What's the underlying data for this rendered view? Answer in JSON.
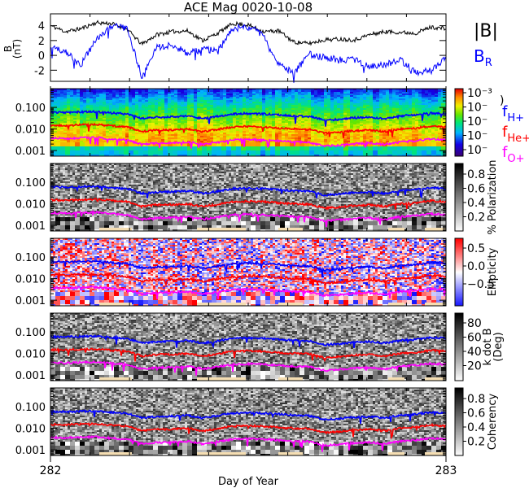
{
  "chart_data": {
    "type": "line",
    "title": "ACE Mag 0020-10-08",
    "xlabel": "Day of Year",
    "x_tick_labels": [
      "282",
      "283"
    ],
    "xlim": [
      282,
      283
    ],
    "x": [
      282.0,
      282.04,
      282.08,
      282.12,
      282.16,
      282.2,
      282.23,
      282.27,
      282.31,
      282.35,
      282.38,
      282.42,
      282.46,
      282.5,
      282.54,
      282.58,
      282.62,
      282.65,
      282.69,
      282.73,
      282.77,
      282.81,
      282.85,
      282.88,
      282.92,
      282.96,
      283.0
    ],
    "panels": [
      {
        "name": "field",
        "ylabel": "B",
        "ylabel_units": "(nT)",
        "ylim": [
          -3.5,
          5.6
        ],
        "y_tick_labels": [
          "4",
          "2",
          "0",
          "-2"
        ],
        "y_ticks": [
          4,
          2,
          0,
          -2
        ],
        "series": [
          {
            "name": "|B|",
            "color": "#000000",
            "values": [
              4.0,
              3.2,
              3.6,
              4.4,
              4.3,
              3.6,
              1.5,
              2.8,
              3.2,
              3.3,
              2.0,
              3.0,
              4.3,
              4.1,
              3.2,
              3.3,
              1.8,
              1.6,
              2.1,
              2.2,
              2.1,
              2.8,
              3.2,
              3.1,
              3.0,
              3.8,
              3.6
            ]
          },
          {
            "name": "B_R",
            "color": "#0000ff",
            "values": [
              1.0,
              0.6,
              -1.3,
              2.2,
              4.0,
              3.8,
              -2.8,
              1.0,
              1.5,
              0.3,
              0.8,
              0.6,
              3.6,
              3.8,
              2.8,
              -1.2,
              -2.4,
              0.2,
              -0.3,
              -0.6,
              -0.6,
              -1.6,
              -1.2,
              -0.6,
              -2.3,
              -2.1,
              -0.4
            ]
          }
        ]
      },
      {
        "name": "power-spectrogram",
        "colorbar_labels": [
          "10⁻³",
          "10⁻",
          "10⁻",
          "10⁻",
          "10⁻"
        ],
        "colorbar_label_fragment": ")",
        "colormap": "rainbow"
      },
      {
        "name": "polarization-spectrogram",
        "colorbar_title": "% Polarization",
        "colorbar_labels": [
          "0.8",
          "0.6",
          "0.4",
          "0.2"
        ],
        "colormap": "gray"
      },
      {
        "name": "ellipticity-spectrogram",
        "colorbar_title": "Ellipticity",
        "colorbar_labels": [
          "0.5",
          "0.0",
          "−0.5"
        ],
        "colormap": "blue-white-red"
      },
      {
        "name": "kdotb-spectrogram",
        "colorbar_title": "k dot B",
        "colorbar_subtitle": "(Deg)",
        "colorbar_labels": [
          "80",
          "60",
          "40",
          "20"
        ],
        "colormap": "gray"
      },
      {
        "name": "coherency-spectrogram",
        "colorbar_title": "Coherency",
        "colorbar_labels": [
          "0.8",
          "0.6",
          "0.4",
          "0.2"
        ],
        "colormap": "gray"
      }
    ],
    "spectrogram_y_tick_labels": [
      "0.100",
      "0.010",
      "0.001"
    ],
    "spectrogram_y_ticks": [
      0.1,
      0.01,
      0.001
    ],
    "spectrogram_ylim": [
      0.00055,
      0.74
    ],
    "spectrogram_yscale": "log",
    "gyro_series": [
      {
        "name": "f_H+",
        "label_main": "f",
        "label_sub": "H+",
        "color": "#0000ff",
        "values": [
          0.06,
          0.058,
          0.062,
          0.063,
          0.055,
          0.05,
          0.03,
          0.035,
          0.036,
          0.04,
          0.03,
          0.038,
          0.05,
          0.052,
          0.05,
          0.045,
          0.04,
          0.038,
          0.025,
          0.028,
          0.033,
          0.035,
          0.03,
          0.04,
          0.045,
          0.055,
          0.05
        ]
      },
      {
        "name": "f_He+",
        "label_main": "f",
        "label_sub": "He+",
        "color": "#ff0000",
        "values": [
          0.015,
          0.0145,
          0.0155,
          0.016,
          0.014,
          0.0125,
          0.0075,
          0.009,
          0.009,
          0.01,
          0.0075,
          0.0095,
          0.0125,
          0.013,
          0.0125,
          0.011,
          0.01,
          0.0095,
          0.0063,
          0.007,
          0.0083,
          0.0088,
          0.0075,
          0.01,
          0.011,
          0.014,
          0.0125
        ]
      },
      {
        "name": "f_O+",
        "label_main": "f",
        "label_sub": "O+",
        "color": "#ff00ff",
        "values": [
          0.0038,
          0.0036,
          0.0039,
          0.004,
          0.0035,
          0.0031,
          0.0019,
          0.0022,
          0.0023,
          0.0025,
          0.0019,
          0.0024,
          0.0031,
          0.0033,
          0.0031,
          0.0028,
          0.0025,
          0.0024,
          0.0016,
          0.0018,
          0.0021,
          0.0022,
          0.0019,
          0.0025,
          0.0028,
          0.0034,
          0.0031
        ]
      }
    ],
    "legend": {
      "placement": "right",
      "b_total": "|B|",
      "b_r_main": "B",
      "b_r_sub": "R"
    }
  }
}
